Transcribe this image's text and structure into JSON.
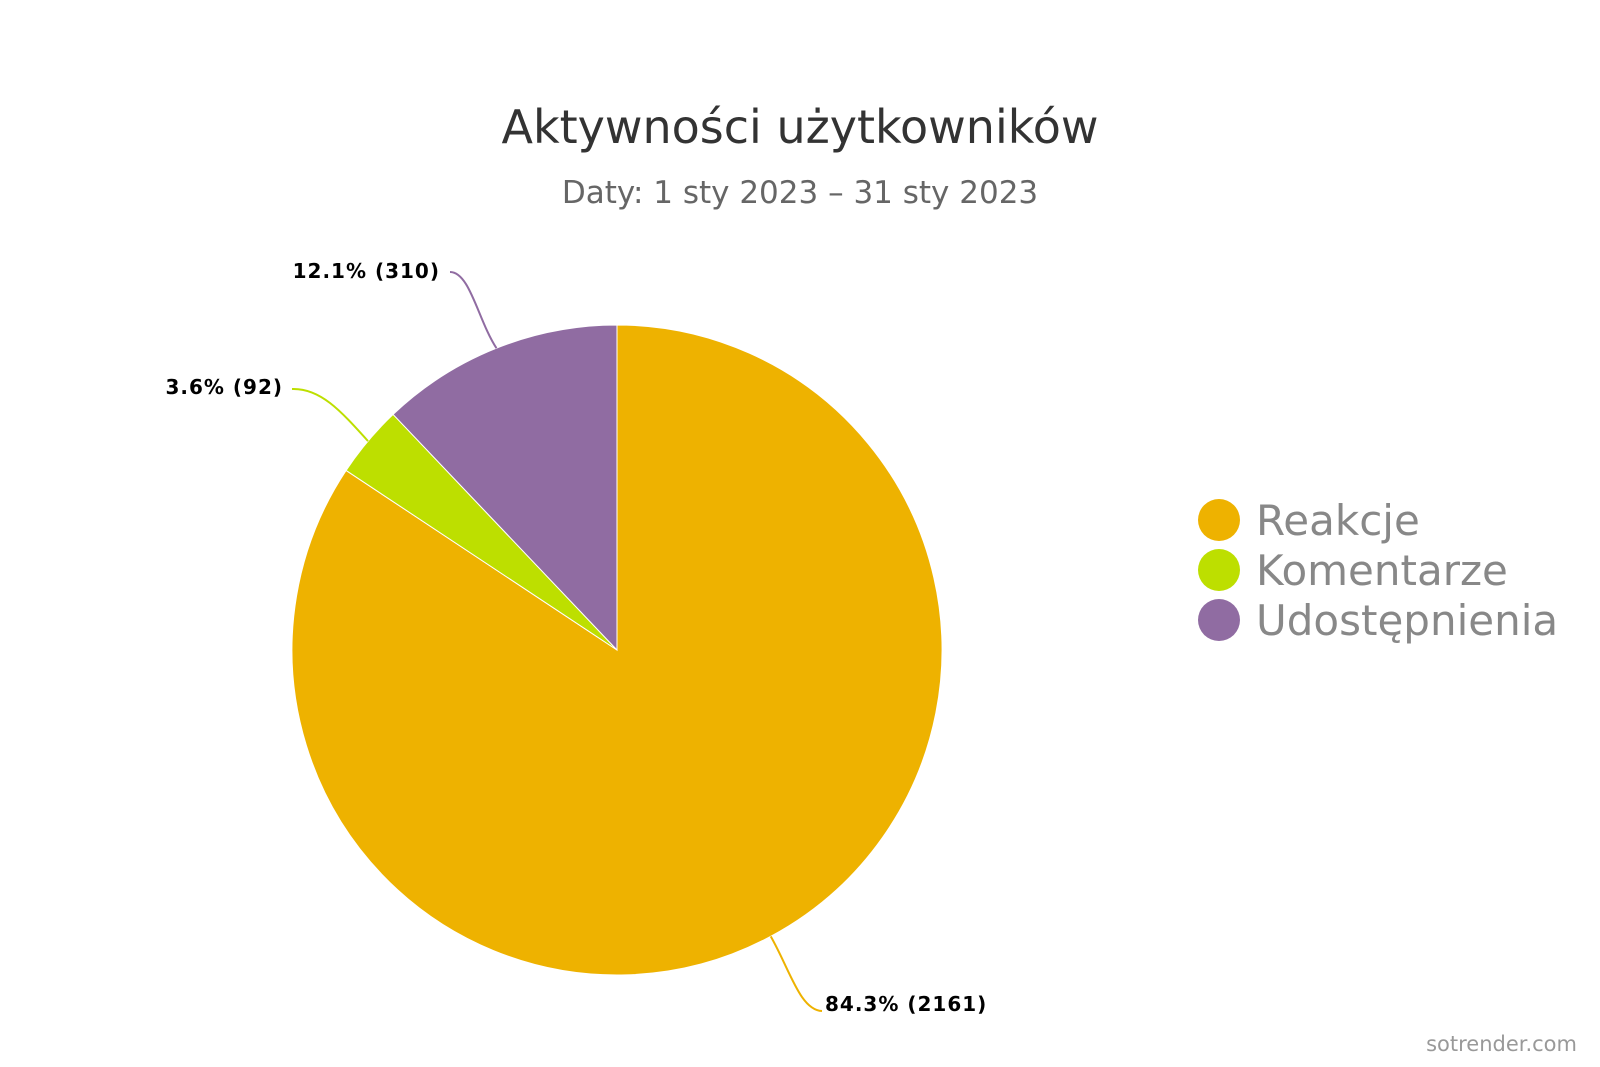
{
  "chart_data": {
    "type": "pie",
    "title": "Aktywności użytkowników",
    "subtitle": "Daty: 1 sty 2023 – 31 sty 2023",
    "series": [
      {
        "name": "Reakcje",
        "value": 2161,
        "percent": 84.3,
        "label": "84.3% (2161)",
        "color": "#eeb200"
      },
      {
        "name": "Komentarze",
        "value": 92,
        "percent": 3.6,
        "label": "3.6% (92)",
        "color": "#bddf00"
      },
      {
        "name": "Udostępnienia",
        "value": 310,
        "percent": 12.1,
        "label": "12.1% (310)",
        "color": "#906ca2"
      }
    ],
    "legend_position": "right"
  },
  "credit": "sotrender.com"
}
